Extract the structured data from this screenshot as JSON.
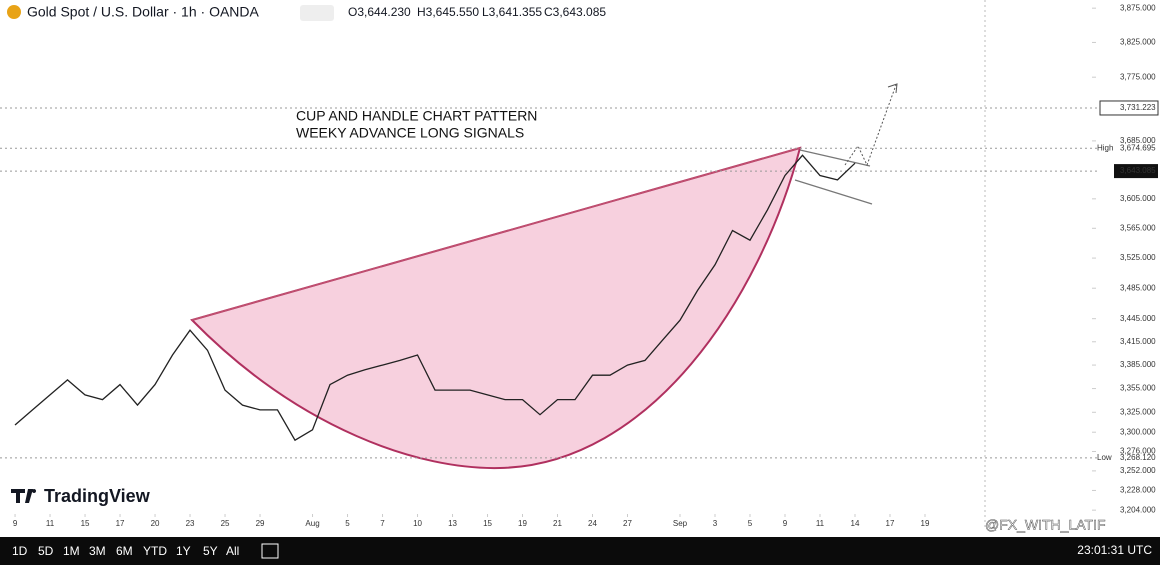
{
  "header": {
    "symbol": "Gold Spot / U.S. Dollar · 1h · OANDA",
    "ohlc": [
      "O3,644.230",
      "H3,645.550",
      "L3,641.355",
      "C3,643.085"
    ]
  },
  "chart_data": {
    "type": "line",
    "annotation": [
      "CUP AND HANDLE CHART PATTERN",
      "WEEKY ADVANCE LONG SIGNALS"
    ],
    "x": [
      0,
      1,
      2,
      3,
      4,
      5,
      6,
      7,
      8,
      9,
      10,
      11,
      12,
      13,
      14,
      15,
      16,
      17,
      18,
      19,
      20,
      21,
      22,
      23,
      24,
      25,
      26,
      27,
      28,
      29,
      30,
      31,
      32,
      33,
      34,
      35,
      36,
      37,
      38,
      39,
      40,
      41,
      42,
      43,
      44,
      45,
      46,
      47,
      48
    ],
    "series": [
      {
        "color": "#222222",
        "values": [
          3309,
          3328,
          3347,
          3366,
          3347,
          3341,
          3360,
          3334,
          3360,
          3398,
          3430,
          3404,
          3353,
          3334,
          3328,
          3328,
          3290,
          3303,
          3360,
          3372,
          3379,
          3385,
          3391,
          3398,
          3353,
          3353,
          3353,
          3347,
          3341,
          3341,
          3322,
          3341,
          3341,
          3372,
          3372,
          3385,
          3391,
          3417,
          3443,
          3482,
          3516,
          3562,
          3549,
          3590,
          3637,
          3665,
          3637,
          3631,
          3654
        ]
      }
    ],
    "xlim": [
      -0.86,
      61.43
    ],
    "xticks": [
      {
        "value": 0,
        "label": "9"
      },
      {
        "value": 2,
        "label": "11"
      },
      {
        "value": 4,
        "label": "15"
      },
      {
        "value": 6,
        "label": "17"
      },
      {
        "value": 8,
        "label": "20"
      },
      {
        "value": 10,
        "label": "23"
      },
      {
        "value": 12,
        "label": "25"
      },
      {
        "value": 14,
        "label": "29"
      },
      {
        "value": 17,
        "label": "Aug"
      },
      {
        "value": 19,
        "label": "5"
      },
      {
        "value": 21,
        "label": "7"
      },
      {
        "value": 23,
        "label": "10"
      },
      {
        "value": 25,
        "label": "13"
      },
      {
        "value": 27,
        "label": "15"
      },
      {
        "value": 29,
        "label": "19"
      },
      {
        "value": 31,
        "label": "21"
      },
      {
        "value": 33,
        "label": "24"
      },
      {
        "value": 35,
        "label": "27"
      },
      {
        "value": 38,
        "label": "Sep"
      },
      {
        "value": 40,
        "label": "3"
      },
      {
        "value": 42,
        "label": "5"
      },
      {
        "value": 44,
        "label": "9"
      },
      {
        "value": 46,
        "label": "11"
      },
      {
        "value": 48,
        "label": "14"
      },
      {
        "value": 50,
        "label": "17"
      },
      {
        "value": 52,
        "label": "19"
      }
    ],
    "ylim": [
      3180,
      3887
    ],
    "log_scale": true,
    "grid": false,
    "yticks": [
      {
        "value": 3875,
        "label": "3,875.000"
      },
      {
        "value": 3825,
        "label": "3,825.000"
      },
      {
        "value": 3775,
        "label": "3,775.000"
      },
      {
        "value": 3685,
        "label": "3,685.000"
      },
      {
        "value": 3605,
        "label": "3,605.000"
      },
      {
        "value": 3565,
        "label": "3,565.000"
      },
      {
        "value": 3525,
        "label": "3,525.000"
      },
      {
        "value": 3485,
        "label": "3,485.000"
      },
      {
        "value": 3445,
        "label": "3,445.000"
      },
      {
        "value": 3415,
        "label": "3,415.000"
      },
      {
        "value": 3385,
        "label": "3,385.000"
      },
      {
        "value": 3355,
        "label": "3,355.000"
      },
      {
        "value": 3325,
        "label": "3,325.000"
      },
      {
        "value": 3300,
        "label": "3,300.000"
      },
      {
        "value": 3276,
        "label": "3,276.000"
      },
      {
        "value": 3252,
        "label": "3,252.000"
      },
      {
        "value": 3228,
        "label": "3,228.000"
      },
      {
        "value": 3204,
        "label": "3,204.000"
      }
    ],
    "price_lines": [
      {
        "value": 3731.223,
        "label": "3,731.223"
      },
      {
        "name": "High",
        "value": 3674.695,
        "label": "3,674.695"
      },
      {
        "value": 3643.085,
        "label": "3,643.085"
      },
      {
        "name": "Low",
        "value": 3268.12,
        "label": "3,268.120"
      }
    ]
  },
  "brand": "TradingView",
  "toolbar": {
    "ranges": [
      "1D",
      "5D",
      "1M",
      "3M",
      "6M",
      "YTD",
      "1Y",
      "5Y",
      "All"
    ],
    "clock": "23:01:31 UTC"
  },
  "watermark": "@FX_WITH_LATIF"
}
